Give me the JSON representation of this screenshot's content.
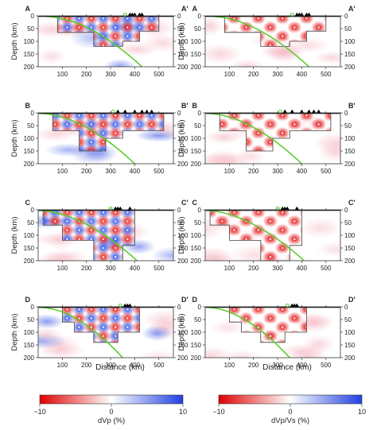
{
  "colors": {
    "neg": "#e00000",
    "pos": "#2040e0",
    "mid": "#ffffff",
    "slab": "#55cc22",
    "axis": "#333333",
    "volcano": "#000000"
  },
  "shared_axis": {
    "xticks": [
      "100",
      "200",
      "300",
      "400",
      "500"
    ],
    "yticks": [
      "0",
      "50",
      "100",
      "150",
      "200"
    ],
    "ylabel": "Depth (km)",
    "xlabel": "Distance (km)"
  },
  "chart_data": [
    {
      "type": "heatmap",
      "id": "A-dVp",
      "label_left": "A",
      "label_right": "A'",
      "quantity": "dVp",
      "xlim": [
        0,
        560
      ],
      "ylim": [
        0,
        200
      ],
      "x_at_depth0": 30,
      "slab_trench_x": 30,
      "slab_end": [
        430,
        200
      ],
      "outline": [
        [
          80,
          0
        ],
        [
          80,
          65
        ],
        [
          230,
          65
        ],
        [
          230,
          120
        ],
        [
          350,
          120
        ],
        [
          350,
          100
        ],
        [
          420,
          100
        ],
        [
          420,
          60
        ],
        [
          500,
          60
        ],
        [
          500,
          0
        ]
      ],
      "volcano_x": [
        380,
        390,
        400,
        420,
        430
      ]
    },
    {
      "type": "heatmap",
      "id": "A-dVpVs",
      "label_left": "A",
      "label_right": "A'",
      "quantity": "dVp/Vs",
      "xlim": [
        0,
        560
      ],
      "ylim": [
        0,
        200
      ],
      "slab_trench_x": 30,
      "slab_end": [
        430,
        200
      ],
      "outline": [
        [
          80,
          0
        ],
        [
          80,
          65
        ],
        [
          230,
          65
        ],
        [
          230,
          120
        ],
        [
          350,
          120
        ],
        [
          350,
          100
        ],
        [
          420,
          100
        ],
        [
          420,
          60
        ],
        [
          500,
          60
        ],
        [
          500,
          0
        ]
      ],
      "volcano_x": [
        380,
        390,
        400,
        420,
        430
      ]
    },
    {
      "type": "heatmap",
      "id": "B-dVp",
      "label_left": "B",
      "label_right": "B'",
      "quantity": "dVp",
      "xlim": [
        0,
        560
      ],
      "ylim": [
        0,
        200
      ],
      "slab_trench_x": 10,
      "slab_end": [
        400,
        200
      ],
      "outline": [
        [
          60,
          0
        ],
        [
          60,
          70
        ],
        [
          170,
          70
        ],
        [
          170,
          150
        ],
        [
          280,
          150
        ],
        [
          280,
          100
        ],
        [
          350,
          100
        ],
        [
          350,
          70
        ],
        [
          520,
          70
        ],
        [
          520,
          0
        ]
      ],
      "volcano_x": [
        330,
        360,
        400,
        430,
        450,
        470
      ]
    },
    {
      "type": "heatmap",
      "id": "B-dVpVs",
      "label_left": "B",
      "label_right": "B'",
      "quantity": "dVp/Vs",
      "xlim": [
        0,
        560
      ],
      "ylim": [
        0,
        200
      ],
      "slab_trench_x": 10,
      "slab_end": [
        400,
        200
      ],
      "outline": [
        [
          60,
          0
        ],
        [
          60,
          70
        ],
        [
          170,
          70
        ],
        [
          170,
          150
        ],
        [
          280,
          150
        ],
        [
          280,
          100
        ],
        [
          350,
          100
        ],
        [
          350,
          70
        ],
        [
          520,
          70
        ],
        [
          520,
          0
        ]
      ],
      "volcano_x": [
        330,
        360,
        400,
        430,
        450,
        470
      ]
    },
    {
      "type": "heatmap",
      "id": "C-dVp",
      "label_left": "C",
      "label_right": "C'",
      "quantity": "dVp",
      "xlim": [
        0,
        560
      ],
      "ylim": [
        0,
        200
      ],
      "slab_trench_x": 0,
      "slab_end": [
        410,
        200
      ],
      "outline": [
        [
          20,
          0
        ],
        [
          20,
          60
        ],
        [
          100,
          60
        ],
        [
          100,
          120
        ],
        [
          230,
          120
        ],
        [
          230,
          200
        ],
        [
          350,
          200
        ],
        [
          350,
          140
        ],
        [
          400,
          140
        ],
        [
          400,
          0
        ]
      ],
      "volcano_x": [
        320,
        330,
        340,
        380
      ]
    },
    {
      "type": "heatmap",
      "id": "C-dVpVs",
      "label_left": "C",
      "label_right": "C'",
      "quantity": "dVp/Vs",
      "xlim": [
        0,
        560
      ],
      "ylim": [
        0,
        200
      ],
      "slab_trench_x": 0,
      "slab_end": [
        410,
        200
      ],
      "outline": [
        [
          20,
          0
        ],
        [
          20,
          60
        ],
        [
          100,
          60
        ],
        [
          100,
          120
        ],
        [
          230,
          120
        ],
        [
          230,
          200
        ],
        [
          350,
          200
        ],
        [
          350,
          140
        ],
        [
          400,
          140
        ],
        [
          400,
          0
        ]
      ],
      "volcano_x": [
        320,
        330,
        340,
        380
      ]
    },
    {
      "type": "heatmap",
      "id": "D-dVp",
      "label_left": "D",
      "label_right": "D'",
      "quantity": "dVp",
      "xlim": [
        0,
        560
      ],
      "ylim": [
        0,
        200
      ],
      "slab_trench_x": 10,
      "slab_end": [
        350,
        200
      ],
      "outline": [
        [
          100,
          0
        ],
        [
          100,
          60
        ],
        [
          150,
          60
        ],
        [
          150,
          100
        ],
        [
          230,
          100
        ],
        [
          230,
          140
        ],
        [
          330,
          140
        ],
        [
          330,
          100
        ],
        [
          420,
          100
        ],
        [
          420,
          0
        ]
      ],
      "volcano_x": [
        360,
        370,
        380
      ]
    },
    {
      "type": "heatmap",
      "id": "D-dVpVs",
      "label_left": "D",
      "label_right": "D'",
      "quantity": "dVp/Vs",
      "xlim": [
        0,
        560
      ],
      "ylim": [
        0,
        200
      ],
      "slab_trench_x": 10,
      "slab_end": [
        350,
        200
      ],
      "outline": [
        [
          100,
          0
        ],
        [
          100,
          60
        ],
        [
          150,
          60
        ],
        [
          150,
          100
        ],
        [
          230,
          100
        ],
        [
          230,
          140
        ],
        [
          330,
          140
        ],
        [
          330,
          100
        ],
        [
          420,
          100
        ],
        [
          420,
          0
        ]
      ],
      "volcano_x": [
        360,
        370,
        380
      ]
    }
  ],
  "colorbars": [
    {
      "id": "cb-dvp",
      "label": "dVp (%)",
      "min": "−10",
      "mid": "0",
      "max": "10",
      "range": [
        -10,
        10
      ]
    },
    {
      "id": "cb-dvpvs",
      "label": "dVp/Vs (%)",
      "min": "−10",
      "mid": "0",
      "max": "10",
      "range": [
        -10,
        10
      ]
    }
  ]
}
